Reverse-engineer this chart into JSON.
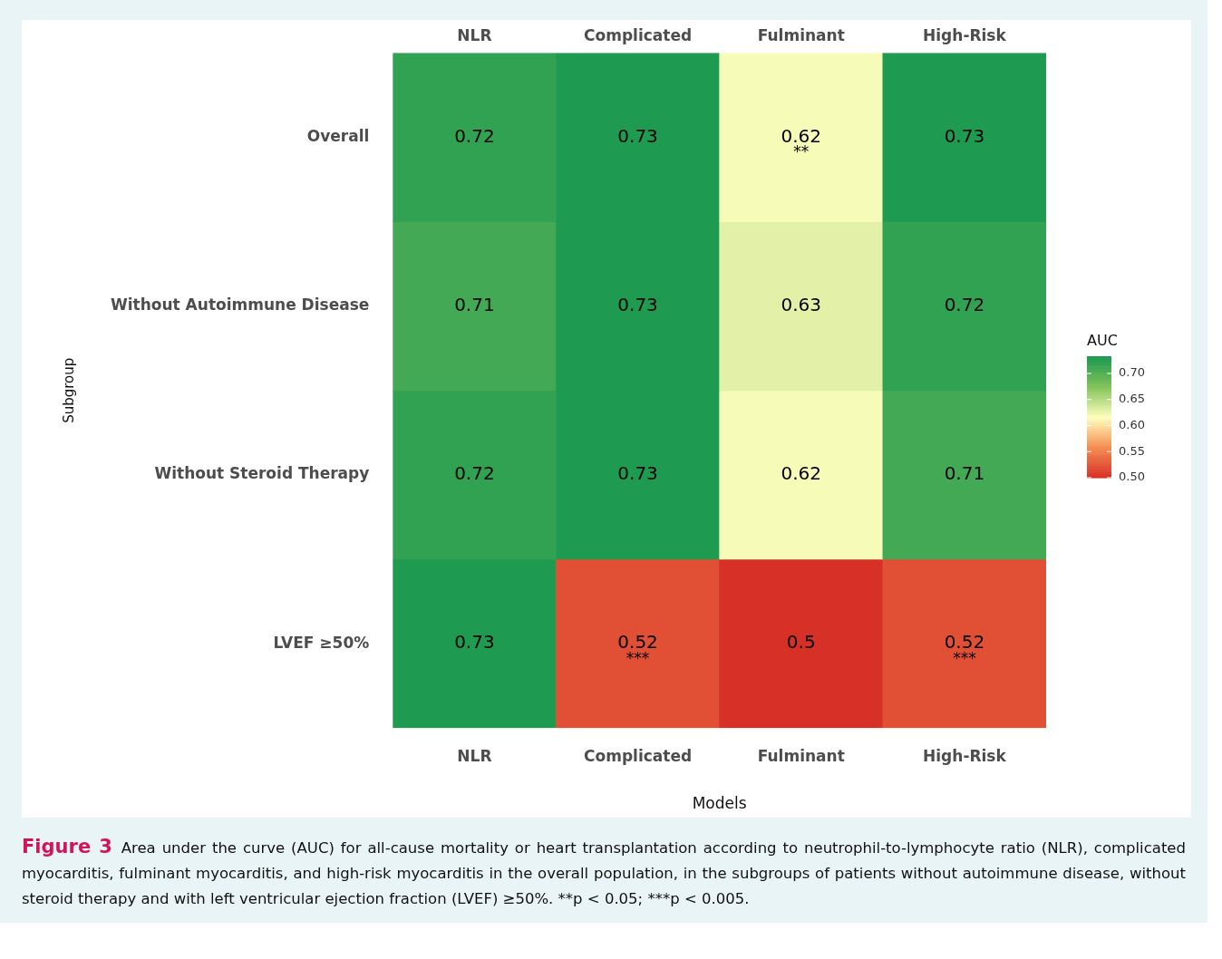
{
  "chart_data": {
    "type": "heatmap",
    "title": "Figure 3",
    "xlabel": "Models",
    "ylabel": "Subgroup",
    "clabel": "AUC",
    "categories": [
      "NLR",
      "Complicated",
      "Fulminant",
      "High-Risk"
    ],
    "y_categories": [
      "Overall",
      "Without Autoimmune Disease",
      "Without Steroid Therapy",
      "LVEF ≥50%"
    ],
    "cells": [
      [
        0.72,
        0.73,
        0.62,
        0.73
      ],
      [
        0.71,
        0.73,
        0.63,
        0.72
      ],
      [
        0.72,
        0.73,
        0.62,
        0.71
      ],
      [
        0.73,
        0.52,
        0.5,
        0.52
      ]
    ],
    "cell_labels": [
      [
        "0.72",
        "0.73",
        "0.62\n**",
        "0.73"
      ],
      [
        "0.71",
        "0.73",
        "0.63",
        "0.72"
      ],
      [
        "0.72",
        "0.73",
        "0.62",
        "0.71"
      ],
      [
        "0.73",
        "0.52\n***",
        "0.5",
        "0.52\n***"
      ]
    ],
    "clim": [
      0.5,
      0.733
    ],
    "cticks": [
      {
        "value": 0.5,
        "label": "0.50"
      },
      {
        "value": 0.55,
        "label": "0.55"
      },
      {
        "value": 0.6,
        "label": "0.60"
      },
      {
        "value": 0.65,
        "label": "0.65"
      },
      {
        "value": 0.7,
        "label": "0.70"
      }
    ],
    "annotations": [
      "Area under the curve (AUC) for all-cause mortality or heart transplantation according to neutrophil-to-lymphocyte ratio (NLR), complicated myocarditis, fulminant myocarditis, and high-risk myocarditis in the overall population, in the subgroups of patients without autoimmune disease, without steroid therapy and with left ventricular ejection fraction (LVEF) ≥50%. **p < 0.05; ***p < 0.005."
    ]
  }
}
